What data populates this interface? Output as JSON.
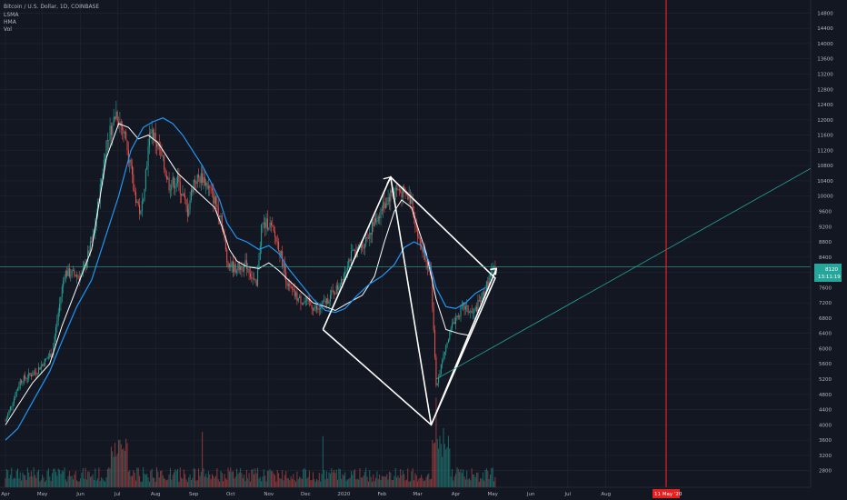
{
  "header": {
    "symbol": "Bitcoin / U.S. Dollar, 1D, COINBASE",
    "indicators": [
      "LSMA",
      "HMA",
      "Vol"
    ]
  },
  "colors": {
    "background": "#131722",
    "grid": "#232632",
    "up": "#26a69a",
    "down": "#ef5350",
    "lsma": "#ffffff",
    "hma": "#2196f3",
    "vline": "#e91e1e",
    "hline": "#26a69a",
    "trend": "#26a69a"
  },
  "price_tag": {
    "value": "8120",
    "timer": "13:11:19"
  },
  "date_tag": {
    "label": "11 May '20"
  },
  "chart_data": {
    "type": "candlestick",
    "y_ticks": [
      2800,
      3200,
      3600,
      4000,
      4400,
      4800,
      5200,
      5600,
      6000,
      6400,
      6800,
      7200,
      7600,
      8000,
      8400,
      8800,
      9200,
      9600,
      10000,
      10400,
      10800,
      11200,
      11600,
      12000,
      12400,
      12800,
      13200,
      13600,
      14000,
      14400,
      14800
    ],
    "x_ticks": [
      "Apr",
      "May",
      "Jun",
      "Jul",
      "Aug",
      "Sep",
      "Oct",
      "Nov",
      "Dec",
      "2020",
      "Feb",
      "Mar",
      "Apr",
      "May",
      "Jun",
      "Jul",
      "Aug"
    ],
    "x_tick_index": [
      0,
      30,
      61,
      91,
      122,
      153,
      183,
      214,
      244,
      275,
      306,
      335,
      366,
      396,
      427,
      457,
      488
    ],
    "ylim": [
      2500,
      15000
    ],
    "price_path": [
      [
        0,
        4100
      ],
      [
        12,
        5150
      ],
      [
        25,
        5400
      ],
      [
        38,
        5900
      ],
      [
        48,
        8000
      ],
      [
        62,
        7900
      ],
      [
        72,
        9000
      ],
      [
        82,
        11400
      ],
      [
        90,
        12200
      ],
      [
        98,
        11500
      ],
      [
        104,
        10200
      ],
      [
        110,
        9500
      ],
      [
        118,
        11800
      ],
      [
        125,
        11200
      ],
      [
        133,
        10300
      ],
      [
        140,
        10400
      ],
      [
        148,
        9600
      ],
      [
        153,
        10400
      ],
      [
        160,
        10500
      ],
      [
        167,
        10100
      ],
      [
        175,
        9500
      ],
      [
        180,
        8300
      ],
      [
        186,
        8100
      ],
      [
        196,
        8200
      ],
      [
        204,
        7600
      ],
      [
        208,
        9200
      ],
      [
        214,
        9300
      ],
      [
        222,
        8700
      ],
      [
        230,
        7600
      ],
      [
        238,
        7300
      ],
      [
        246,
        7200
      ],
      [
        254,
        7000
      ],
      [
        262,
        7300
      ],
      [
        270,
        7600
      ],
      [
        280,
        8400
      ],
      [
        290,
        8700
      ],
      [
        300,
        9300
      ],
      [
        308,
        9800
      ],
      [
        316,
        10200
      ],
      [
        322,
        10100
      ],
      [
        330,
        9900
      ],
      [
        336,
        8800
      ],
      [
        342,
        8400
      ],
      [
        346,
        7800
      ],
      [
        350,
        5000
      ],
      [
        356,
        5800
      ],
      [
        364,
        6700
      ],
      [
        372,
        7100
      ],
      [
        380,
        6900
      ],
      [
        388,
        7400
      ],
      [
        394,
        7900
      ],
      [
        398,
        8150
      ]
    ],
    "lsma_path": [
      [
        0,
        4000
      ],
      [
        10,
        4500
      ],
      [
        22,
        5100
      ],
      [
        36,
        5600
      ],
      [
        46,
        6600
      ],
      [
        58,
        7600
      ],
      [
        70,
        8600
      ],
      [
        82,
        11000
      ],
      [
        92,
        11900
      ],
      [
        100,
        11800
      ],
      [
        108,
        11500
      ],
      [
        116,
        11600
      ],
      [
        124,
        11400
      ],
      [
        132,
        11000
      ],
      [
        140,
        10600
      ],
      [
        150,
        10300
      ],
      [
        160,
        10000
      ],
      [
        170,
        9700
      ],
      [
        176,
        9200
      ],
      [
        182,
        8600
      ],
      [
        188,
        8300
      ],
      [
        196,
        8150
      ],
      [
        206,
        8100
      ],
      [
        214,
        8250
      ],
      [
        222,
        8050
      ],
      [
        230,
        7800
      ],
      [
        240,
        7500
      ],
      [
        250,
        7200
      ],
      [
        260,
        7100
      ],
      [
        268,
        7000
      ],
      [
        276,
        7150
      ],
      [
        290,
        7400
      ],
      [
        300,
        7900
      ],
      [
        308,
        8800
      ],
      [
        316,
        9600
      ],
      [
        322,
        9900
      ],
      [
        330,
        9700
      ],
      [
        336,
        9100
      ],
      [
        342,
        8500
      ],
      [
        350,
        7300
      ],
      [
        358,
        6500
      ],
      [
        368,
        6400
      ],
      [
        376,
        6350
      ]
    ],
    "hma_path": [
      [
        0,
        3600
      ],
      [
        10,
        3900
      ],
      [
        22,
        4600
      ],
      [
        36,
        5400
      ],
      [
        46,
        6200
      ],
      [
        58,
        7100
      ],
      [
        70,
        7800
      ],
      [
        82,
        9000
      ],
      [
        92,
        10000
      ],
      [
        102,
        11200
      ],
      [
        112,
        11800
      ],
      [
        120,
        11950
      ],
      [
        128,
        12050
      ],
      [
        136,
        11900
      ],
      [
        144,
        11600
      ],
      [
        152,
        11200
      ],
      [
        160,
        10800
      ],
      [
        168,
        10300
      ],
      [
        174,
        9900
      ],
      [
        180,
        9300
      ],
      [
        188,
        8900
      ],
      [
        196,
        8800
      ],
      [
        206,
        8600
      ],
      [
        214,
        8700
      ],
      [
        222,
        8500
      ],
      [
        230,
        8100
      ],
      [
        240,
        7700
      ],
      [
        250,
        7300
      ],
      [
        260,
        7000
      ],
      [
        268,
        6950
      ],
      [
        276,
        7050
      ],
      [
        286,
        7400
      ],
      [
        296,
        7700
      ],
      [
        306,
        7900
      ],
      [
        316,
        8200
      ],
      [
        324,
        8650
      ],
      [
        332,
        8800
      ],
      [
        338,
        8700
      ],
      [
        344,
        8300
      ],
      [
        350,
        7600
      ],
      [
        358,
        7100
      ],
      [
        366,
        7050
      ],
      [
        374,
        7200
      ],
      [
        382,
        7450
      ],
      [
        390,
        7600
      ]
    ],
    "volume_ticks": []
  }
}
